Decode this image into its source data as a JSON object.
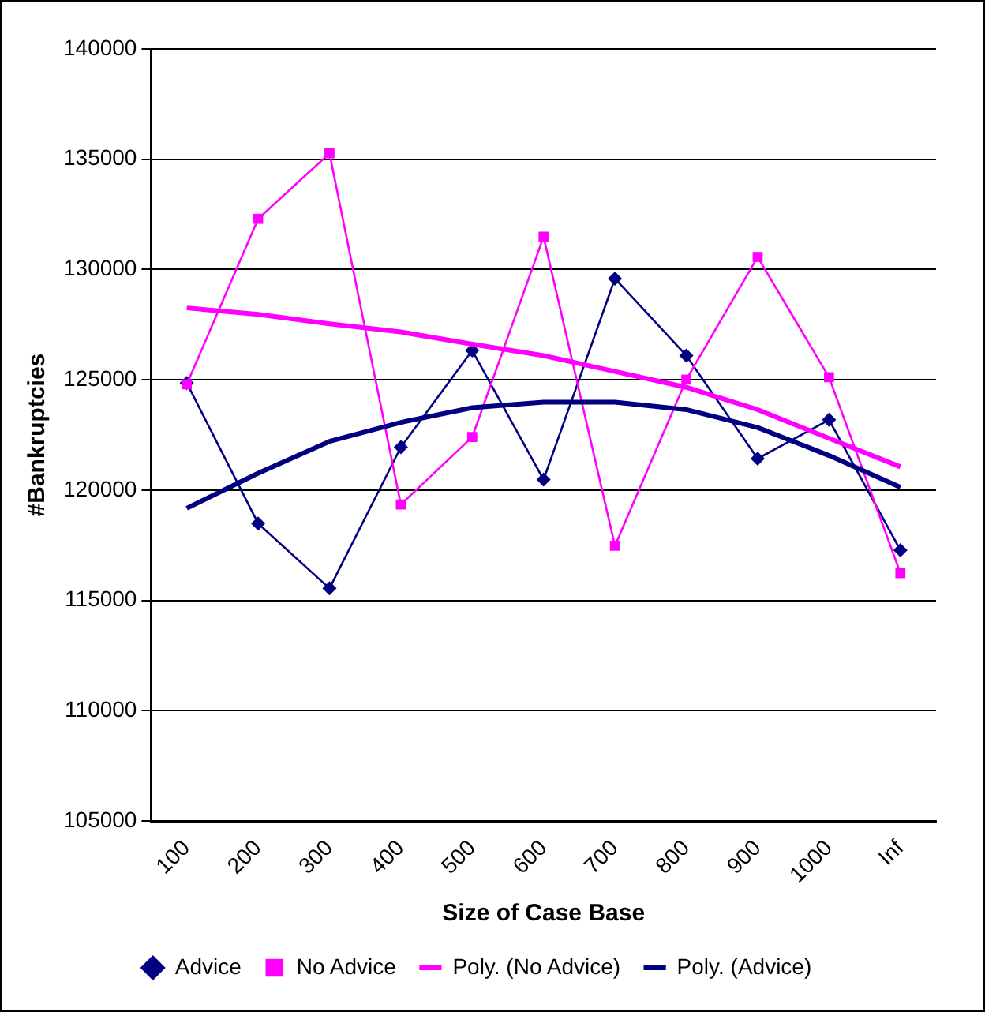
{
  "chart_data": {
    "type": "line",
    "xlabel": "Size of Case Base",
    "ylabel": "#Bankruptcies",
    "categories": [
      "100",
      "200",
      "300",
      "400",
      "500",
      "600",
      "700",
      "800",
      "900",
      "1000",
      "Inf"
    ],
    "ylim": [
      105000,
      140000
    ],
    "yticks": [
      105000,
      110000,
      115000,
      120000,
      125000,
      130000,
      135000,
      140000
    ],
    "grid": "y",
    "legend": "bottom",
    "series": [
      {
        "name": "Advice",
        "color": "#000080",
        "marker": "diamond",
        "values": [
          124860,
          118490,
          115550,
          121950,
          126330,
          120480,
          129590,
          126100,
          121430,
          123190,
          117280
        ]
      },
      {
        "name": "No Advice",
        "color": "#ff00ff",
        "marker": "square",
        "values": [
          124800,
          132300,
          135270,
          119350,
          122410,
          131490,
          117480,
          125010,
          130570,
          125120,
          116240
        ]
      },
      {
        "name": "Poly. (No Advice)",
        "color": "#ff00ff",
        "marker": "none",
        "values": [
          128260,
          127970,
          127540,
          127170,
          126620,
          126100,
          125380,
          124660,
          123650,
          122350,
          121060
        ]
      },
      {
        "name": "Poly. (Advice)",
        "color": "#000080",
        "marker": "none",
        "values": [
          119180,
          120770,
          122210,
          123070,
          123740,
          123990,
          123990,
          123650,
          122840,
          121570,
          120130
        ]
      }
    ]
  }
}
